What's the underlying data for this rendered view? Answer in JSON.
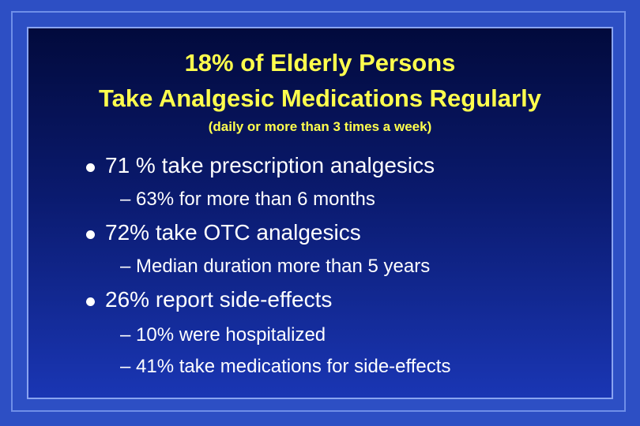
{
  "slide": {
    "title": [
      "18% of Elderly Persons",
      "Take Analgesic Medications Regularly"
    ],
    "subtitle": "(daily or more than 3 times a week)",
    "bullets": [
      {
        "text": "71 % take prescription analgesics",
        "subs": [
          "– 63% for more than 6 months"
        ]
      },
      {
        "text": "72% take OTC analgesics",
        "subs": [
          "– Median duration more than 5 years"
        ]
      },
      {
        "text": "26% report side-effects",
        "subs": [
          "– 10% were hospitalized",
          "– 41% take medications for side-effects"
        ]
      }
    ]
  }
}
